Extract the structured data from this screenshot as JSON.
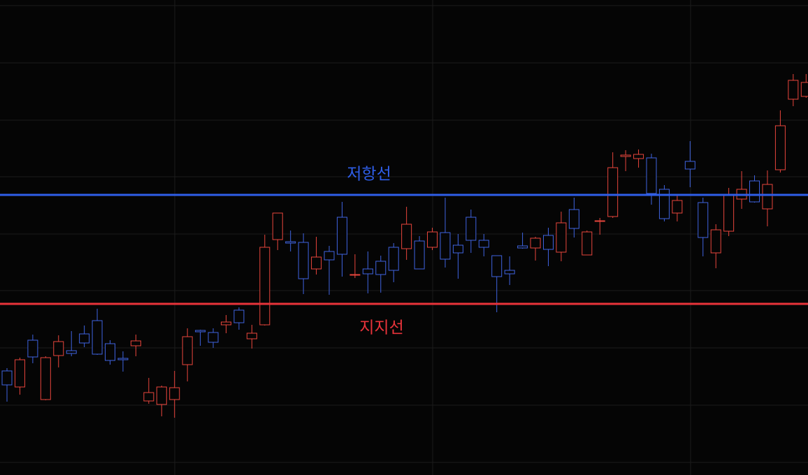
{
  "chart_data": {
    "type": "candlestick",
    "open": [
      149,
      126,
      193,
      108,
      171,
      178,
      202,
      221,
      188,
      167,
      185,
      106,
      101,
      108,
      158,
      207,
      204,
      215,
      236,
      195,
      215,
      337,
      334,
      333,
      295,
      320,
      369,
      286,
      295,
      306,
      326,
      324,
      335,
      326,
      347,
      329,
      369,
      336,
      314,
      293,
      328,
      325,
      343,
      319,
      380,
      315,
      363,
      370,
      456,
      453,
      454,
      409,
      375,
      449,
      390,
      318,
      349,
      395,
      421,
      381,
      437,
      538,
      542
    ],
    "high": [
      153,
      168,
      201,
      170,
      200,
      206,
      214,
      238,
      193,
      177,
      201,
      139,
      128,
      149,
      210,
      208,
      210,
      229,
      240,
      215,
      344,
      375,
      350,
      346,
      341,
      328,
      391,
      316,
      320,
      314,
      332,
      384,
      342,
      354,
      397,
      345,
      380,
      345,
      314,
      313,
      347,
      341,
      354,
      377,
      397,
      350,
      368,
      462,
      465,
      466,
      460,
      415,
      400,
      478,
      397,
      359,
      411,
      435,
      429,
      436,
      522,
      574,
      574
    ],
    "low": [
      105,
      115,
      160,
      107,
      154,
      170,
      183,
      172,
      158,
      148,
      170,
      102,
      84,
      82,
      134,
      185,
      182,
      203,
      208,
      181,
      214,
      322,
      320,
      259,
      287,
      258,
      284,
      282,
      260,
      261,
      276,
      308,
      295,
      322,
      297,
      281,
      318,
      313,
      233,
      272,
      324,
      307,
      299,
      306,
      340,
      315,
      344,
      368,
      435,
      440,
      387,
      363,
      363,
      412,
      313,
      296,
      342,
      381,
      390,
      356,
      433,
      528,
      540
    ],
    "close": [
      129,
      165,
      169,
      168,
      191,
      174,
      189,
      173,
      164,
      165,
      192,
      118,
      126,
      125,
      198,
      205,
      190,
      219,
      218,
      203,
      326,
      375,
      332,
      281,
      312,
      308,
      316,
      287,
      288,
      287,
      293,
      359,
      295,
      348,
      309,
      318,
      336,
      326,
      284,
      288,
      325,
      339,
      323,
      361,
      353,
      348,
      364,
      440,
      458,
      459,
      403,
      367,
      393,
      438,
      340,
      351,
      401,
      409,
      391,
      416,
      500,
      565,
      562
    ],
    "up_color": "#e8453c",
    "down_color": "#3f63e0",
    "ylim": [
      0,
      680
    ],
    "yticks": [
      672,
      590,
      508,
      427,
      345,
      264,
      182,
      100,
      18
    ],
    "grid": true,
    "lines": [
      {
        "label": "저항선",
        "value": 401,
        "color": "#2f5ee8"
      },
      {
        "label": "지지선",
        "value": 245,
        "color": "#e8333a"
      }
    ]
  }
}
